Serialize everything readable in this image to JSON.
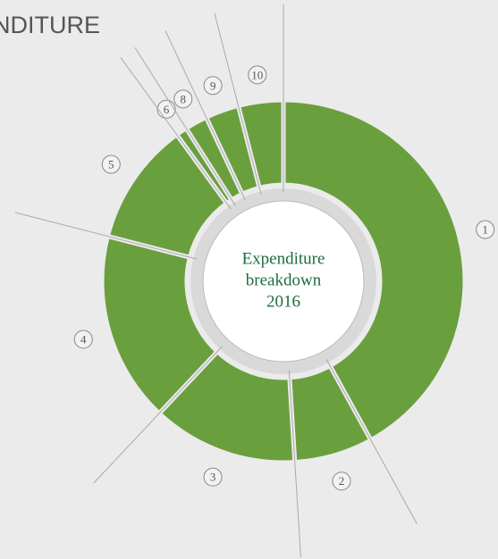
{
  "chart_data": {
    "type": "donut",
    "title": "NDITURE",
    "center_label": [
      "Expenditure",
      "breakdown",
      "2016"
    ],
    "categories": [
      "1",
      "2",
      "3",
      "4",
      "5",
      "6",
      "8",
      "9",
      "10"
    ],
    "values": [
      42,
      7,
      13,
      17,
      11,
      1,
      2,
      3,
      4
    ],
    "color": "#6a9f3e"
  }
}
